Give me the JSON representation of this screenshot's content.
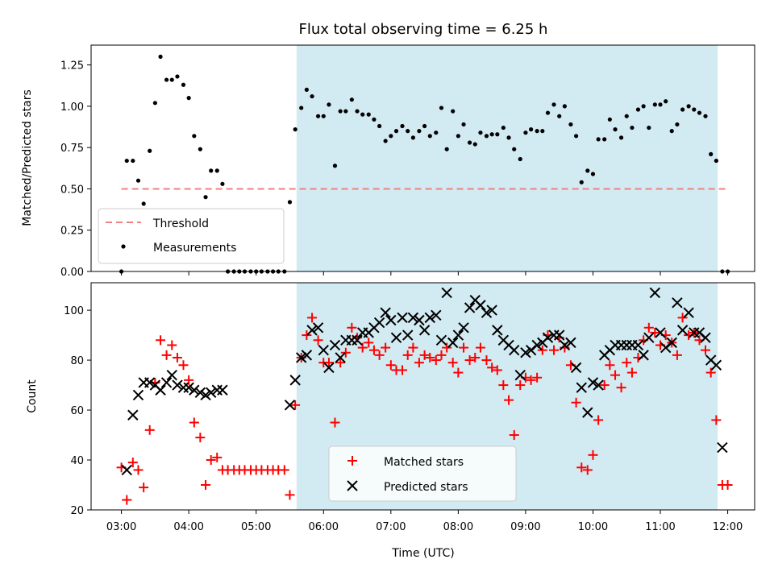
{
  "chart_data": [
    {
      "type": "scatter",
      "title": "Flux total observing time = 6.25 h",
      "xlabel": "",
      "ylabel": "Matched/Predicted stars",
      "xlim": [
        2.55,
        12.4
      ],
      "ylim": [
        0,
        1.37
      ],
      "yticks": [
        0,
        0.25,
        0.5,
        0.75,
        1.0,
        1.25
      ],
      "ytick_labels": [
        "0.00",
        "0.25",
        "0.50",
        "0.75",
        "1.00",
        "1.25"
      ],
      "xticks": [
        3,
        4,
        5,
        6,
        7,
        8,
        9,
        10,
        11,
        12
      ],
      "shaded_region": {
        "x_start": 5.6,
        "x_end": 11.85,
        "color": "#add8e6"
      },
      "threshold": {
        "name": "Threshold",
        "value": 0.5,
        "x_start": 3.0,
        "x_end": 12.0,
        "color": "#f08080"
      },
      "legend": {
        "placement": "lower-left",
        "entries": [
          "Threshold",
          "Measurements"
        ]
      },
      "series": [
        {
          "name": "Measurements",
          "color": "#000000",
          "x": [
            3.0,
            3.08,
            3.17,
            3.25,
            3.33,
            3.42,
            3.5,
            3.58,
            3.67,
            3.75,
            3.83,
            3.92,
            4.0,
            4.08,
            4.17,
            4.25,
            4.33,
            4.42,
            4.5,
            4.58,
            4.67,
            4.75,
            4.83,
            4.92,
            5.0,
            5.08,
            5.17,
            5.25,
            5.33,
            5.42,
            5.5,
            5.58,
            5.67,
            5.75,
            5.83,
            5.92,
            6.0,
            6.08,
            6.17,
            6.25,
            6.33,
            6.42,
            6.5,
            6.58,
            6.67,
            6.75,
            6.83,
            6.92,
            7.0,
            7.08,
            7.17,
            7.25,
            7.33,
            7.42,
            7.5,
            7.58,
            7.67,
            7.75,
            7.83,
            7.92,
            8.0,
            8.08,
            8.17,
            8.25,
            8.33,
            8.42,
            8.5,
            8.58,
            8.67,
            8.75,
            8.83,
            8.92,
            9.0,
            9.08,
            9.17,
            9.25,
            9.33,
            9.42,
            9.5,
            9.58,
            9.67,
            9.75,
            9.83,
            9.92,
            10.0,
            10.08,
            10.17,
            10.25,
            10.33,
            10.42,
            10.5,
            10.58,
            10.67,
            10.75,
            10.83,
            10.92,
            11.0,
            11.08,
            11.17,
            11.25,
            11.33,
            11.42,
            11.5,
            11.58,
            11.67,
            11.75,
            11.83,
            11.92,
            12.0
          ],
          "y": [
            0.0,
            0.67,
            0.67,
            0.55,
            0.41,
            0.73,
            1.02,
            1.3,
            1.16,
            1.16,
            1.18,
            1.13,
            1.05,
            0.82,
            0.74,
            0.45,
            0.61,
            0.61,
            0.53,
            0.0,
            0.0,
            0.0,
            0.0,
            0.0,
            0.0,
            0.0,
            0.0,
            0.0,
            0.0,
            0.0,
            0.42,
            0.86,
            0.99,
            1.1,
            1.06,
            0.94,
            0.94,
            1.01,
            0.64,
            0.97,
            0.97,
            1.04,
            0.97,
            0.95,
            0.95,
            0.92,
            0.88,
            0.79,
            0.82,
            0.85,
            0.88,
            0.85,
            0.81,
            0.85,
            0.88,
            0.82,
            0.84,
            0.99,
            0.74,
            0.97,
            0.82,
            0.89,
            0.78,
            0.77,
            0.84,
            0.82,
            0.83,
            0.83,
            0.87,
            0.81,
            0.74,
            0.68,
            0.84,
            0.86,
            0.85,
            0.85,
            0.96,
            1.01,
            0.94,
            1.0,
            0.89,
            0.82,
            0.54,
            0.61,
            0.59,
            0.8,
            0.8,
            0.92,
            0.86,
            0.81,
            0.94,
            0.87,
            0.98,
            1.0,
            0.87,
            1.01,
            1.01,
            1.03,
            0.85,
            0.89,
            0.98,
            1.0,
            0.98,
            0.96,
            0.94,
            0.71,
            0.67,
            0.0,
            0.0
          ]
        }
      ]
    },
    {
      "type": "scatter",
      "title": "",
      "xlabel": "Time (UTC)",
      "ylabel": "Count",
      "xlim": [
        2.55,
        12.4
      ],
      "ylim": [
        20,
        111
      ],
      "yticks": [
        20,
        40,
        60,
        80,
        100
      ],
      "ytick_labels": [
        "20",
        "40",
        "60",
        "80",
        "100"
      ],
      "xticks": [
        3,
        4,
        5,
        6,
        7,
        8,
        9,
        10,
        11,
        12
      ],
      "xtick_labels": [
        "03:00",
        "04:00",
        "05:00",
        "06:00",
        "07:00",
        "08:00",
        "09:00",
        "10:00",
        "11:00",
        "12:00"
      ],
      "shaded_region": {
        "x_start": 5.6,
        "x_end": 11.85,
        "color": "#add8e6"
      },
      "legend": {
        "placement": "lower-center",
        "entries": [
          "Matched stars",
          "Predicted stars"
        ]
      },
      "series": [
        {
          "name": "Matched stars",
          "marker": "+",
          "color": "#ff0000",
          "x": [
            3.0,
            3.08,
            3.17,
            3.25,
            3.33,
            3.42,
            3.5,
            3.58,
            3.67,
            3.75,
            3.83,
            3.92,
            4.0,
            4.08,
            4.17,
            4.25,
            4.33,
            4.42,
            4.5,
            4.58,
            4.67,
            4.75,
            4.83,
            4.92,
            5.0,
            5.08,
            5.17,
            5.25,
            5.33,
            5.42,
            5.5,
            5.58,
            5.67,
            5.75,
            5.83,
            5.92,
            6.0,
            6.08,
            6.17,
            6.25,
            6.33,
            6.42,
            6.5,
            6.58,
            6.67,
            6.75,
            6.83,
            6.92,
            7.0,
            7.08,
            7.17,
            7.25,
            7.33,
            7.42,
            7.5,
            7.58,
            7.67,
            7.75,
            7.83,
            7.92,
            8.0,
            8.08,
            8.17,
            8.25,
            8.33,
            8.42,
            8.5,
            8.58,
            8.67,
            8.75,
            8.83,
            8.92,
            9.0,
            9.08,
            9.17,
            9.25,
            9.33,
            9.42,
            9.5,
            9.58,
            9.67,
            9.75,
            9.83,
            9.92,
            10.0,
            10.08,
            10.17,
            10.25,
            10.33,
            10.42,
            10.5,
            10.58,
            10.67,
            10.75,
            10.83,
            10.92,
            11.0,
            11.08,
            11.17,
            11.25,
            11.33,
            11.42,
            11.5,
            11.58,
            11.67,
            11.75,
            11.83,
            11.92,
            12.0
          ],
          "y": [
            37,
            24,
            39,
            36,
            29,
            52,
            71,
            88,
            82,
            86,
            81,
            78,
            72,
            55,
            49,
            30,
            40,
            41,
            36,
            36,
            36,
            36,
            36,
            36,
            36,
            36,
            36,
            36,
            36,
            36,
            26,
            62,
            81,
            90,
            97,
            88,
            79,
            79,
            55,
            79,
            83,
            93,
            89,
            85,
            87,
            84,
            82,
            85,
            78,
            76,
            76,
            82,
            85,
            79,
            82,
            81,
            80,
            82,
            85,
            79,
            75,
            85,
            80,
            81,
            85,
            80,
            77,
            76,
            70,
            64,
            50,
            70,
            73,
            72,
            73,
            84,
            90,
            84,
            89,
            85,
            78,
            63,
            37,
            36,
            42,
            56,
            70,
            78,
            74,
            69,
            79,
            75,
            81,
            88,
            93,
            91,
            86,
            90,
            87,
            82,
            97,
            90,
            91,
            88,
            84,
            75,
            56,
            30,
            30
          ]
        },
        {
          "name": "Predicted stars",
          "marker": "x",
          "color": "#000000",
          "x": [
            3.08,
            3.17,
            3.25,
            3.33,
            3.42,
            3.5,
            3.58,
            3.67,
            3.75,
            3.83,
            3.92,
            4.0,
            4.08,
            4.17,
            4.25,
            4.33,
            4.42,
            4.5,
            5.5,
            5.58,
            5.67,
            5.75,
            5.83,
            5.92,
            6.0,
            6.08,
            6.17,
            6.25,
            6.33,
            6.42,
            6.5,
            6.58,
            6.67,
            6.75,
            6.83,
            6.92,
            7.0,
            7.08,
            7.17,
            7.25,
            7.33,
            7.42,
            7.5,
            7.58,
            7.67,
            7.75,
            7.83,
            7.92,
            8.0,
            8.08,
            8.17,
            8.25,
            8.33,
            8.42,
            8.5,
            8.58,
            8.67,
            8.75,
            8.83,
            8.92,
            9.0,
            9.08,
            9.17,
            9.25,
            9.33,
            9.42,
            9.5,
            9.58,
            9.67,
            9.75,
            9.83,
            9.92,
            10.0,
            10.08,
            10.17,
            10.25,
            10.33,
            10.42,
            10.5,
            10.58,
            10.67,
            10.75,
            10.83,
            10.92,
            11.0,
            11.08,
            11.17,
            11.25,
            11.33,
            11.42,
            11.5,
            11.58,
            11.67,
            11.75,
            11.83,
            11.92
          ],
          "y": [
            36,
            58,
            66,
            71,
            71,
            70,
            68,
            71,
            74,
            70,
            69,
            69,
            68,
            67,
            66,
            67,
            68,
            68,
            62,
            72,
            81,
            82,
            92,
            93,
            84,
            77,
            86,
            81,
            88,
            88,
            88,
            91,
            91,
            93,
            95,
            99,
            96,
            89,
            97,
            90,
            97,
            96,
            92,
            97,
            98,
            88,
            107,
            87,
            90,
            93,
            101,
            104,
            102,
            99,
            100,
            92,
            88,
            86,
            84,
            74,
            83,
            84,
            86,
            87,
            89,
            90,
            90,
            86,
            87,
            77,
            69,
            59,
            71,
            70,
            82,
            84,
            86,
            86,
            86,
            86,
            86,
            82,
            89,
            107,
            91,
            85,
            87,
            103,
            92,
            99,
            91,
            91,
            89,
            80,
            78,
            45
          ]
        }
      ]
    }
  ]
}
